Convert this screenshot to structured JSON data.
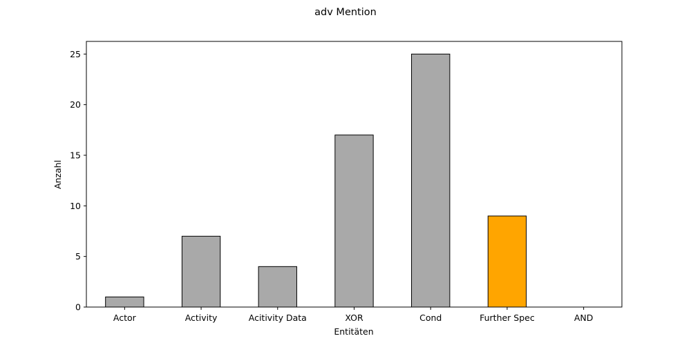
{
  "chart_data": {
    "type": "bar",
    "title": "adv Mention",
    "xlabel": "Entitäten",
    "ylabel": "Anzahl",
    "categories": [
      "Actor",
      "Activity",
      "Acitivity Data",
      "XOR",
      "Cond",
      "Further Spec",
      "AND"
    ],
    "values": [
      1,
      7,
      4,
      17,
      25,
      9,
      0
    ],
    "ylim": [
      0,
      26.25
    ],
    "yticks": [
      0,
      5,
      10,
      15,
      20,
      25
    ],
    "bar_colors": [
      "#a9a9a9",
      "#a9a9a9",
      "#a9a9a9",
      "#a9a9a9",
      "#a9a9a9",
      "#ffa500",
      "#a9a9a9"
    ],
    "edge_color": "#000000",
    "grid": false,
    "legend": "none"
  }
}
